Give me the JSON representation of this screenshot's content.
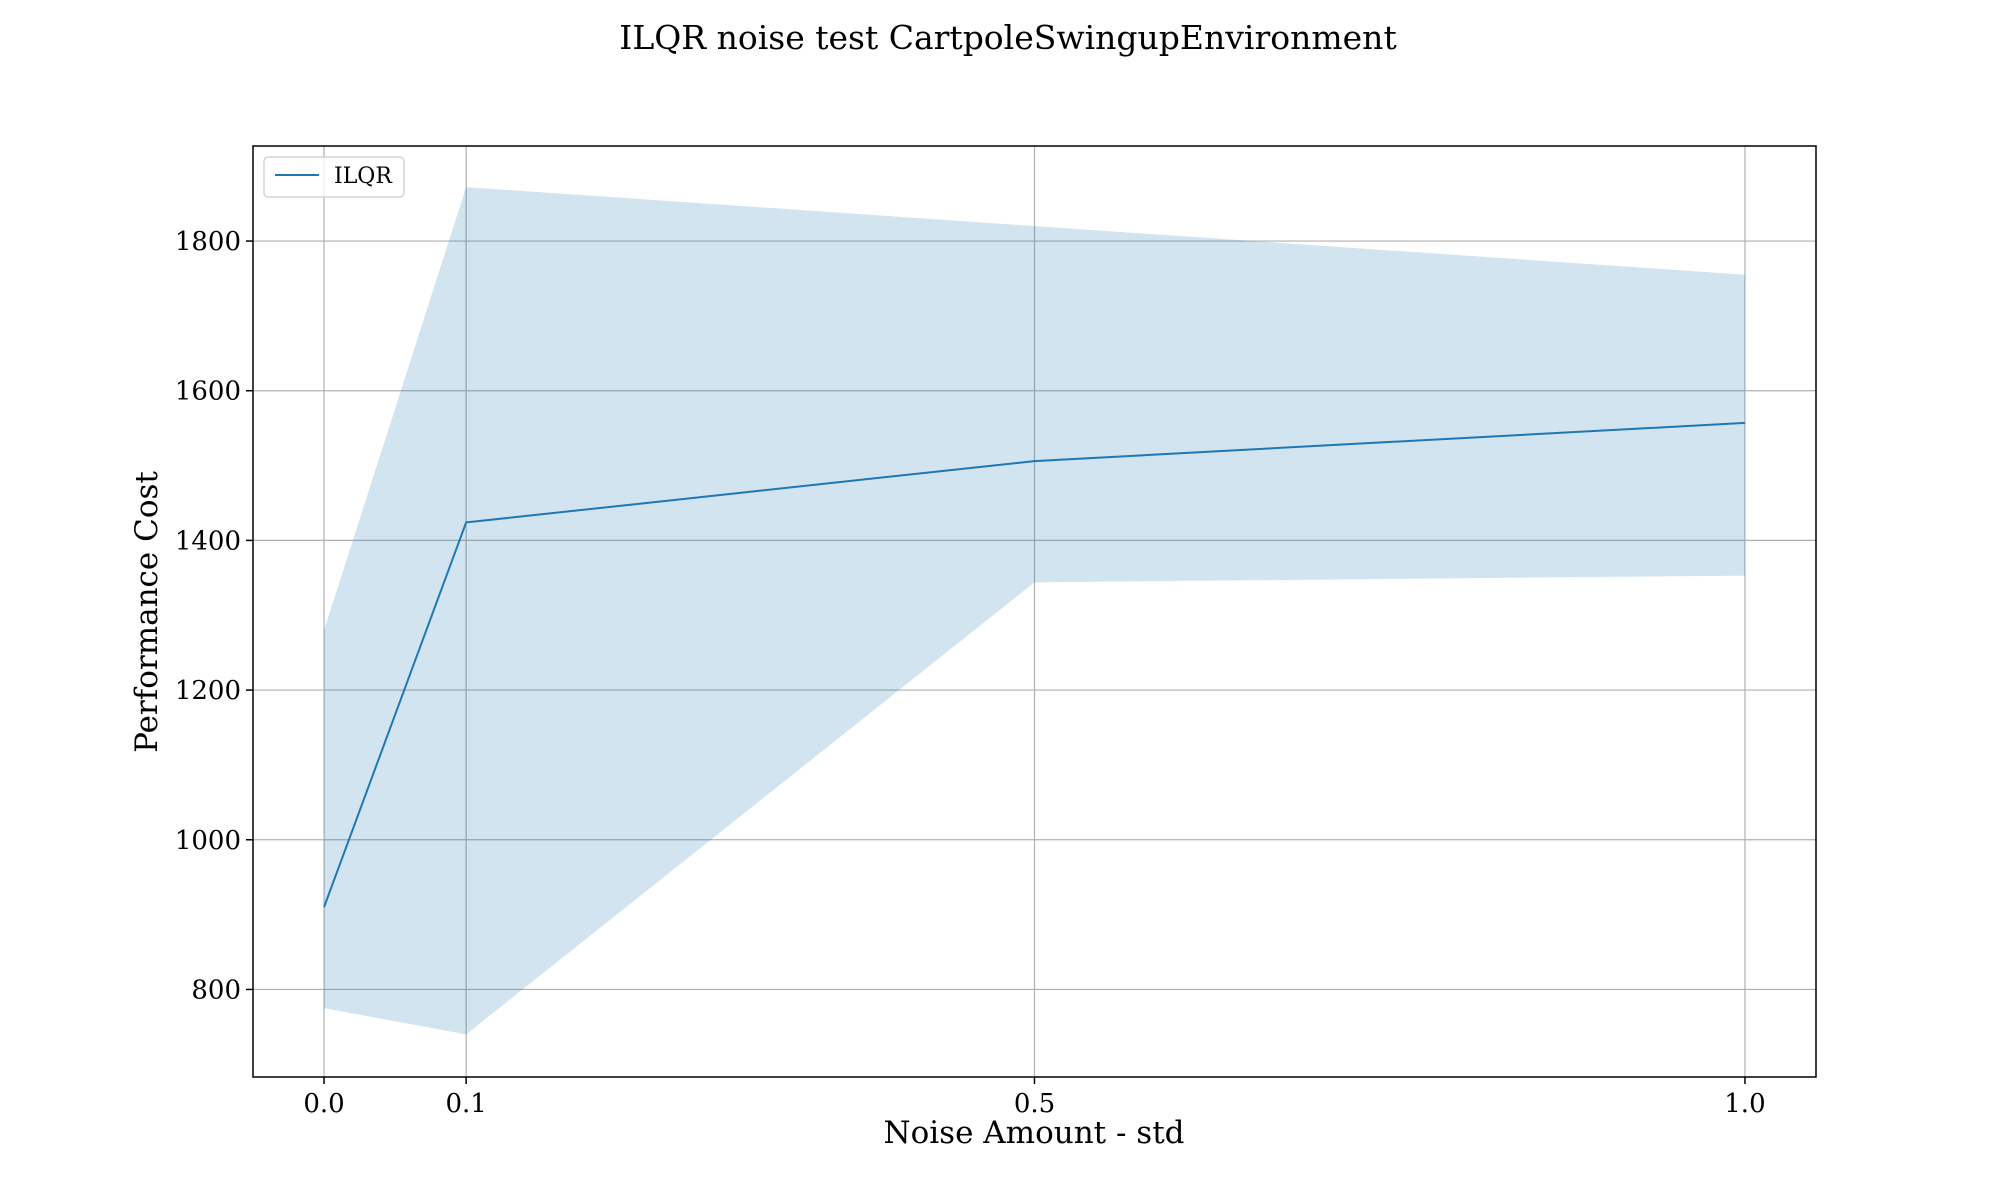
{
  "chart_data": {
    "type": "line",
    "title": "ILQR noise test CartpoleSwingupEnvironment",
    "xlabel": "Noise Amount - std",
    "ylabel": "Performance Cost",
    "xlim": [
      -0.05,
      1.05
    ],
    "ylim": [
      683,
      1927
    ],
    "grid": true,
    "legend_position": "top-left",
    "x_ticks": [
      0.0,
      0.1,
      0.5,
      1.0
    ],
    "x_tick_labels": [
      "0.0",
      "0.1",
      "0.5",
      "1.0"
    ],
    "y_ticks": [
      800,
      1000,
      1200,
      1400,
      1600,
      1800
    ],
    "y_tick_labels": [
      "800",
      "1000",
      "1200",
      "1400",
      "1600",
      "1800"
    ],
    "series": [
      {
        "name": "ILQR",
        "color": "#1f77b4",
        "band_color": "#1f77b4",
        "band_opacity": 0.2,
        "x": [
          0.0,
          0.1,
          0.5,
          1.0
        ],
        "values": [
          910,
          1424,
          1506,
          1557
        ],
        "lower": [
          775,
          740,
          1344,
          1353
        ],
        "upper": [
          1280,
          1872,
          1820,
          1755
        ]
      }
    ]
  }
}
